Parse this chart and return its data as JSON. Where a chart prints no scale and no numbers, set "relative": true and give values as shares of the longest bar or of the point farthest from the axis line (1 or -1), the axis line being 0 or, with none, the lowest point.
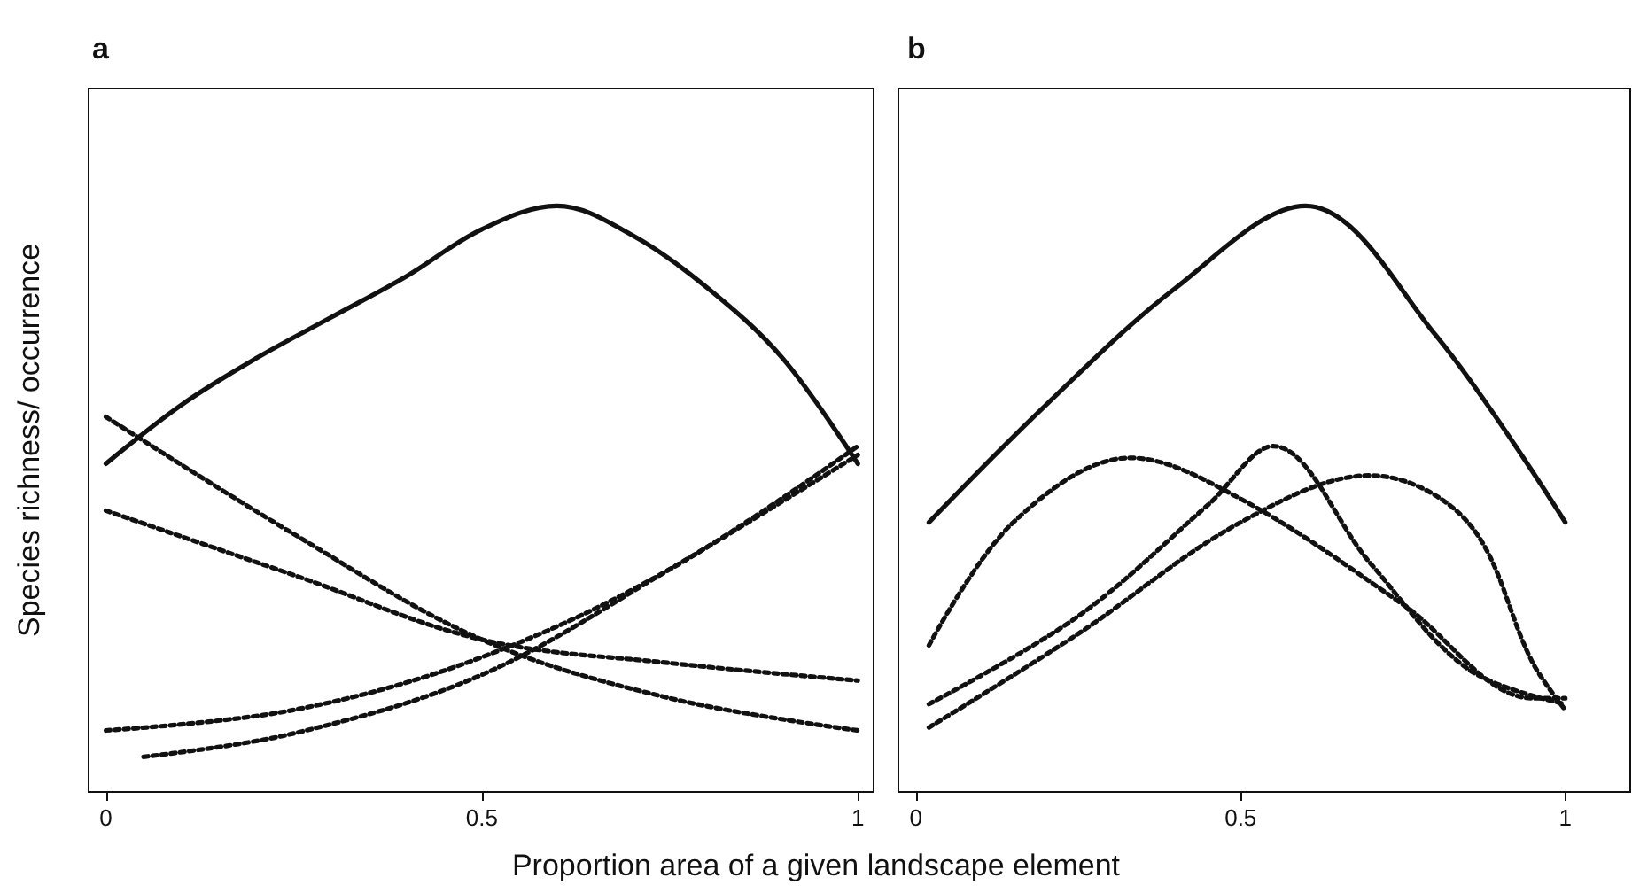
{
  "chart_data": [
    {
      "type": "line",
      "title": "a",
      "ylabel": "Species richness/ occurrence",
      "xlabel": "Proportion area of a given landscape element",
      "relative": true,
      "tick_labels": "x",
      "xlim": [
        -0.023,
        1.021
      ],
      "xticks": [
        0,
        0.5,
        1
      ],
      "grid": false,
      "marker": "none",
      "series": [
        {
          "color": "#111111",
          "line_style": "solid",
          "x": [
            0,
            0.1,
            0.2,
            0.3,
            0.4,
            0.5,
            0.6,
            0.7,
            0.8,
            0.9,
            1.0
          ],
          "values": [
            0.56,
            0.66,
            0.74,
            0.81,
            0.88,
            0.96,
            1.0,
            0.95,
            0.86,
            0.74,
            0.56
          ]
        },
        {
          "color": "#111111",
          "line_style": "dotted",
          "x": [
            0,
            0.25,
            0.5,
            0.75,
            1.0
          ],
          "values": [
            0.64,
            0.44,
            0.26,
            0.16,
            0.105
          ]
        },
        {
          "color": "#111111",
          "line_style": "dotted",
          "x": [
            0,
            0.25,
            0.5,
            0.75,
            1.0
          ],
          "values": [
            0.48,
            0.37,
            0.26,
            0.22,
            0.19
          ]
        },
        {
          "color": "#111111",
          "line_style": "dotted",
          "x": [
            0,
            0.25,
            0.5,
            0.75,
            1.0
          ],
          "values": [
            0.105,
            0.14,
            0.23,
            0.38,
            0.59
          ]
        },
        {
          "color": "#111111",
          "line_style": "dotted",
          "x": [
            0.05,
            0.25,
            0.5,
            0.75,
            1.0
          ],
          "values": [
            0.06,
            0.1,
            0.2,
            0.38,
            0.575
          ]
        }
      ]
    },
    {
      "type": "line",
      "title": "b",
      "relative": true,
      "tick_labels": "x",
      "xlim": [
        -0.027,
        1.1
      ],
      "xticks": [
        0,
        0.5,
        1
      ],
      "grid": false,
      "marker": "none",
      "series": [
        {
          "color": "#111111",
          "line_style": "solid",
          "x": [
            0.02,
            0.2,
            0.4,
            0.6,
            0.8,
            1.0
          ],
          "values": [
            0.46,
            0.66,
            0.86,
            1.0,
            0.78,
            0.46
          ]
        },
        {
          "color": "#111111",
          "line_style": "dotted",
          "x": [
            0.02,
            0.15,
            0.33,
            0.5,
            0.75,
            0.95,
            1.0
          ],
          "values": [
            0.25,
            0.46,
            0.57,
            0.5,
            0.32,
            0.16,
            0.16
          ]
        },
        {
          "color": "#111111",
          "line_style": "dotted",
          "x": [
            0.02,
            0.25,
            0.45,
            0.55,
            0.7,
            0.85,
            1.0
          ],
          "values": [
            0.15,
            0.3,
            0.49,
            0.59,
            0.39,
            0.21,
            0.15
          ]
        },
        {
          "color": "#111111",
          "line_style": "dotted",
          "x": [
            0.02,
            0.25,
            0.5,
            0.7,
            0.85,
            0.95,
            1.0
          ],
          "values": [
            0.11,
            0.27,
            0.46,
            0.54,
            0.46,
            0.22,
            0.14
          ]
        }
      ]
    }
  ]
}
